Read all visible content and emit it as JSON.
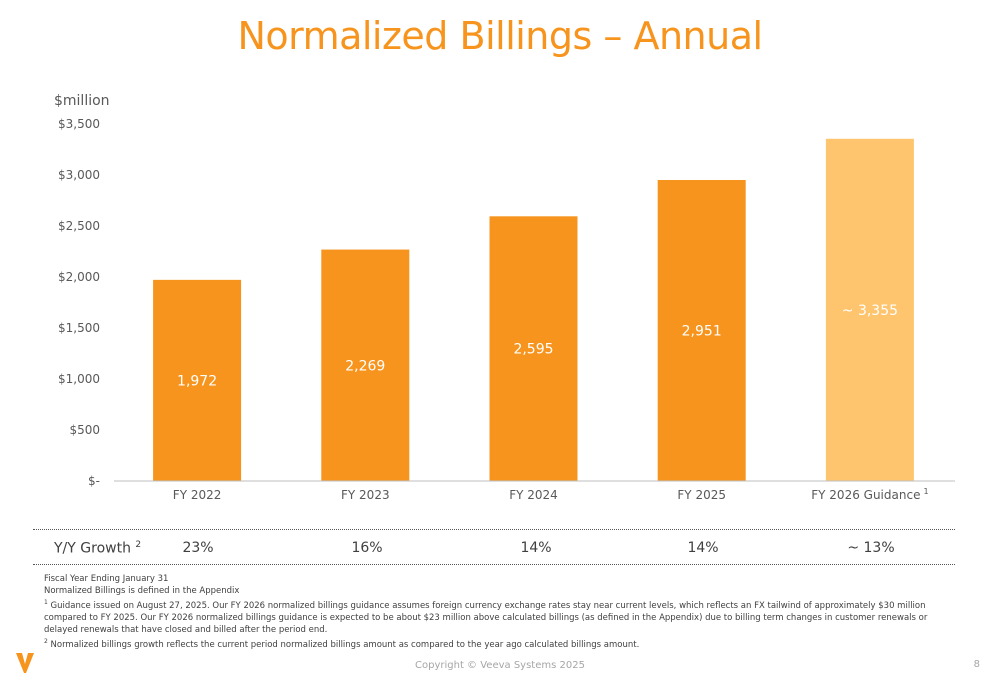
{
  "title": "Normalized Billings – Annual",
  "colors": {
    "accent": "#F7941D",
    "bar": "#F7941D",
    "bar_light": "#FFC56E",
    "text": "#595959"
  },
  "chart_data": {
    "type": "bar",
    "title": "Normalized Billings – Annual",
    "unit_label": "$million",
    "categories": [
      "FY 2022",
      "FY 2023",
      "FY 2024",
      "FY 2025",
      "FY 2026 Guidance"
    ],
    "category_superscripts": [
      "",
      "",
      "",
      "",
      "1"
    ],
    "values": [
      1972,
      2269,
      2595,
      2951,
      3355
    ],
    "data_labels": [
      "1,972",
      "2,269",
      "2,595",
      "2,951",
      "~ 3,355"
    ],
    "highlight": [
      false,
      false,
      false,
      false,
      true
    ],
    "yticks": [
      0,
      500,
      1000,
      1500,
      2000,
      2500,
      3000,
      3500
    ],
    "ytick_labels": [
      "$-",
      "$500",
      "$1,000",
      "$1,500",
      "$2,000",
      "$2,500",
      "$3,000",
      "$3,500"
    ],
    "ylim": [
      0,
      3500
    ],
    "grid": false
  },
  "growth": {
    "label": "Y/Y Growth",
    "label_sup": "2",
    "values": [
      "23%",
      "16%",
      "14%",
      "14%",
      "~ 13%"
    ]
  },
  "notes": {
    "line1": "Fiscal Year Ending January 31",
    "line2": "Normalized Billings is defined in the Appendix",
    "note1_mark": "1",
    "note1": "Guidance issued on August 27, 2025. Our FY 2026 normalized billings guidance assumes foreign currency exchange rates stay near current levels, which reflects an FX tailwind of approximately $30 million compared to FY 2025. Our FY 2026 normalized billings guidance is expected to be about $23 million above calculated billings (as defined in the Appendix) due to billing term changes in customer renewals or delayed renewals that have closed and billed after the period end.",
    "note2_mark": "2",
    "note2": "Normalized billings growth reflects the current period normalized billings amount as compared to the year ago calculated billings amount."
  },
  "footer": {
    "copyright": "Copyright © Veeva Systems 2025",
    "page": "8"
  }
}
